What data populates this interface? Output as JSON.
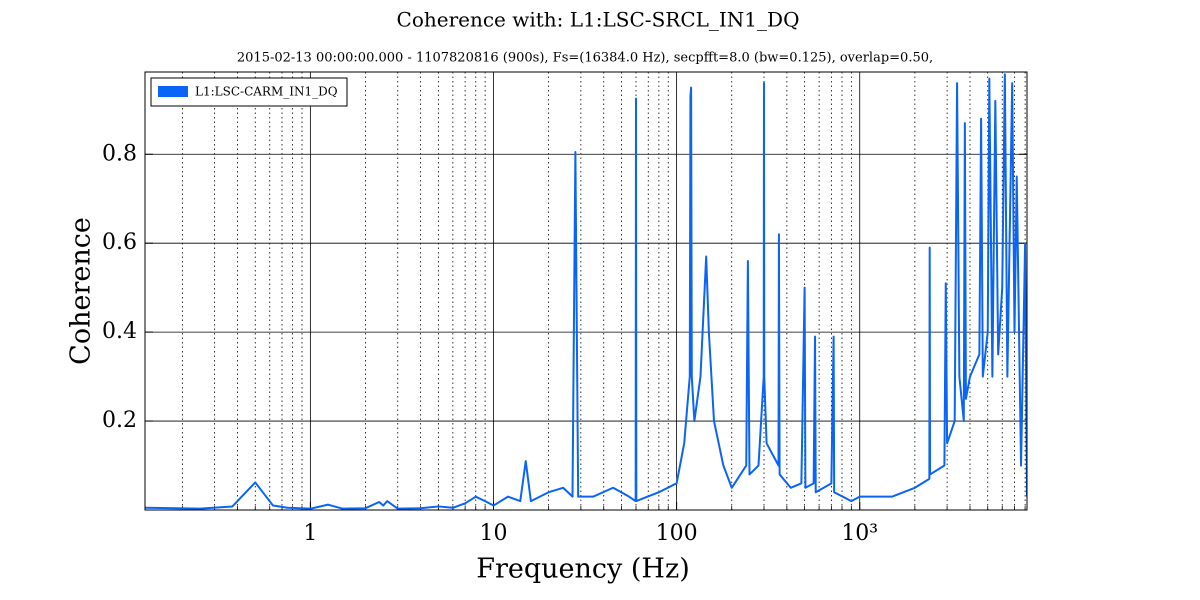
{
  "chart_data": {
    "type": "line",
    "title": "Coherence with: L1:LSC-SRCL_IN1_DQ",
    "subtitle": "2015-02-13 00:00:00.000 - 1107820816 (900s), Fs=(16384.0 Hz), secpfft=8.0 (bw=0.125), overlap=0.50,",
    "x_label": "Frequency (Hz)",
    "y_label": "Coherence",
    "x": [
      0.125,
      0.25,
      0.375,
      0.5,
      0.625,
      0.75,
      1,
      1.25,
      1.5,
      2,
      2.375,
      2.5,
      2.625,
      3,
      4,
      5,
      6,
      7,
      8,
      9,
      10,
      12,
      14,
      15,
      16,
      20,
      24,
      27,
      28,
      29,
      35,
      45,
      55,
      59.75,
      60,
      60.25,
      80,
      100,
      110,
      118,
      119,
      120,
      121,
      125,
      135,
      145,
      150,
      160,
      180,
      200,
      240,
      245,
      250,
      280,
      299,
      300,
      301,
      310,
      360,
      362,
      365,
      420,
      480,
      500,
      505,
      560,
      570,
      575,
      700,
      720,
      725,
      900,
      1000,
      1500,
      2000,
      2400,
      2410,
      2420,
      2900,
      2950,
      3000,
      3300,
      3400,
      3500,
      3700,
      3750,
      3800,
      4000,
      4500,
      4600,
      4700,
      5000,
      5100,
      5300,
      5500,
      5700,
      6000,
      6200,
      6400,
      6800,
      7000,
      7200,
      7600,
      8000,
      8192
    ],
    "series": [
      {
        "name": "L1:LSC-CARM_IN1_DQ",
        "color": "#0a64f5",
        "values": [
          0.005,
          0.003,
          0.008,
          0.062,
          0.01,
          0.005,
          0.003,
          0.012,
          0.003,
          0.004,
          0.018,
          0.01,
          0.02,
          0.003,
          0.004,
          0.008,
          0.005,
          0.015,
          0.03,
          0.02,
          0.01,
          0.03,
          0.02,
          0.11,
          0.02,
          0.04,
          0.05,
          0.03,
          0.805,
          0.03,
          0.03,
          0.05,
          0.03,
          0.02,
          0.925,
          0.02,
          0.04,
          0.06,
          0.15,
          0.3,
          0.93,
          0.95,
          0.3,
          0.2,
          0.3,
          0.57,
          0.4,
          0.2,
          0.1,
          0.05,
          0.1,
          0.56,
          0.08,
          0.1,
          0.3,
          0.96,
          0.3,
          0.15,
          0.1,
          0.62,
          0.08,
          0.05,
          0.06,
          0.5,
          0.05,
          0.06,
          0.39,
          0.04,
          0.06,
          0.39,
          0.04,
          0.02,
          0.03,
          0.03,
          0.05,
          0.07,
          0.59,
          0.08,
          0.1,
          0.51,
          0.15,
          0.2,
          0.96,
          0.3,
          0.2,
          0.87,
          0.25,
          0.3,
          0.35,
          0.88,
          0.3,
          0.4,
          0.97,
          0.3,
          0.92,
          0.35,
          0.5,
          0.98,
          0.3,
          0.96,
          0.4,
          0.75,
          0.1,
          0.6,
          0.03
        ]
      }
    ],
    "xlim": [
      0.125,
      8192
    ],
    "ylim": [
      0,
      0.985
    ],
    "xscale": "log",
    "xticks": [
      1,
      10,
      100,
      {
        "value": 1000,
        "label": "10³"
      }
    ],
    "yticks": [
      0.2,
      0.4,
      0.6,
      0.8
    ],
    "grid": true,
    "legend": "upper left"
  }
}
